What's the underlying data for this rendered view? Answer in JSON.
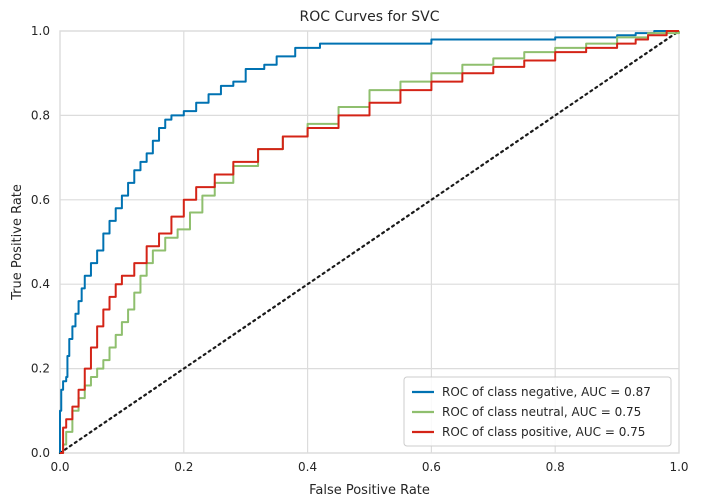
{
  "chart_data": {
    "type": "line",
    "title": "ROC Curves for SVC",
    "xlabel": "False Positive Rate",
    "ylabel": "True Positive Rate",
    "xlim": [
      0,
      1
    ],
    "ylim": [
      0,
      1
    ],
    "xticks": [
      "0.0",
      "0.2",
      "0.4",
      "0.6",
      "0.8",
      "1.0"
    ],
    "yticks": [
      "0.0",
      "0.2",
      "0.4",
      "0.6",
      "0.8",
      "1.0"
    ],
    "grid": true,
    "legend_position": "lower-right",
    "series": [
      {
        "name": "ROC of class negative, AUC = 0.87",
        "color": "#0072b2",
        "x": [
          0,
          0,
          0.002,
          0.005,
          0.01,
          0.012,
          0.015,
          0.02,
          0.025,
          0.03,
          0.035,
          0.04,
          0.05,
          0.06,
          0.07,
          0.08,
          0.09,
          0.1,
          0.11,
          0.12,
          0.13,
          0.14,
          0.15,
          0.16,
          0.17,
          0.18,
          0.2,
          0.22,
          0.24,
          0.26,
          0.28,
          0.3,
          0.33,
          0.35,
          0.38,
          0.42,
          0.5,
          0.6,
          0.7,
          0.8,
          0.9,
          0.93,
          0.96,
          1.0
        ],
        "y": [
          0,
          0.1,
          0.15,
          0.17,
          0.18,
          0.23,
          0.27,
          0.3,
          0.33,
          0.36,
          0.39,
          0.42,
          0.45,
          0.48,
          0.52,
          0.55,
          0.58,
          0.61,
          0.64,
          0.67,
          0.69,
          0.71,
          0.74,
          0.77,
          0.79,
          0.8,
          0.81,
          0.83,
          0.85,
          0.87,
          0.88,
          0.91,
          0.92,
          0.94,
          0.96,
          0.97,
          0.97,
          0.98,
          0.98,
          0.985,
          0.99,
          0.995,
          1.0,
          1.0
        ]
      },
      {
        "name": "ROC of class neutral, AUC = 0.75",
        "color": "#8fbf6e",
        "x": [
          0,
          0.005,
          0.01,
          0.02,
          0.03,
          0.04,
          0.05,
          0.06,
          0.07,
          0.08,
          0.09,
          0.1,
          0.11,
          0.12,
          0.13,
          0.14,
          0.15,
          0.17,
          0.19,
          0.21,
          0.23,
          0.25,
          0.28,
          0.32,
          0.36,
          0.4,
          0.45,
          0.5,
          0.55,
          0.6,
          0.65,
          0.7,
          0.75,
          0.8,
          0.85,
          0.9,
          0.95,
          1.0
        ],
        "y": [
          0,
          0.02,
          0.05,
          0.1,
          0.13,
          0.16,
          0.18,
          0.2,
          0.22,
          0.25,
          0.28,
          0.31,
          0.34,
          0.38,
          0.42,
          0.45,
          0.48,
          0.51,
          0.53,
          0.57,
          0.61,
          0.64,
          0.68,
          0.72,
          0.75,
          0.78,
          0.82,
          0.86,
          0.88,
          0.9,
          0.92,
          0.935,
          0.95,
          0.96,
          0.97,
          0.985,
          0.995,
          1.0
        ]
      },
      {
        "name": "ROC of class positive, AUC = 0.75",
        "color": "#d42417",
        "x": [
          0,
          0.005,
          0.01,
          0.02,
          0.03,
          0.04,
          0.05,
          0.06,
          0.07,
          0.08,
          0.09,
          0.1,
          0.12,
          0.14,
          0.16,
          0.18,
          0.2,
          0.22,
          0.25,
          0.28,
          0.32,
          0.36,
          0.4,
          0.45,
          0.5,
          0.55,
          0.6,
          0.65,
          0.7,
          0.75,
          0.8,
          0.85,
          0.9,
          0.93,
          0.95,
          0.98,
          1.0
        ],
        "y": [
          0,
          0.06,
          0.08,
          0.11,
          0.15,
          0.2,
          0.25,
          0.3,
          0.34,
          0.37,
          0.4,
          0.42,
          0.45,
          0.49,
          0.52,
          0.56,
          0.6,
          0.63,
          0.66,
          0.69,
          0.72,
          0.75,
          0.77,
          0.8,
          0.83,
          0.86,
          0.88,
          0.9,
          0.915,
          0.93,
          0.95,
          0.96,
          0.97,
          0.98,
          0.99,
          1.0,
          1.0
        ]
      }
    ],
    "reference_line": {
      "x": [
        0,
        1
      ],
      "y": [
        0,
        1
      ],
      "color": "#1a1a1a",
      "style": "dotted"
    }
  }
}
